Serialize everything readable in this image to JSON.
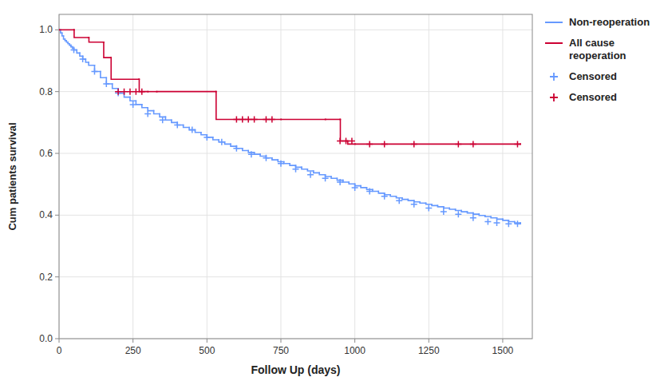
{
  "chart_data": {
    "type": "line",
    "xlabel": "Follow Up (days)",
    "ylabel": "Cum patients survival",
    "xlim": [
      0,
      1600
    ],
    "ylim": [
      0.0,
      1.05
    ],
    "xticks": [
      0,
      250,
      500,
      750,
      1000,
      1250,
      1500
    ],
    "yticks": [
      {
        "value": 0.0,
        "label": "0.0"
      },
      0.2,
      0.4,
      0.6,
      0.8,
      {
        "value": 1.0,
        "label": "1.0"
      }
    ],
    "grid": true,
    "legend": "right",
    "series": [
      {
        "name": "Non-reoperation",
        "type": "step",
        "color": "#6699ff",
        "line_style": "solid",
        "x": [
          0,
          5,
          10,
          15,
          20,
          25,
          30,
          35,
          40,
          45,
          50,
          60,
          70,
          80,
          90,
          100,
          120,
          140,
          160,
          180,
          200,
          220,
          240,
          260,
          280,
          300,
          320,
          340,
          360,
          380,
          400,
          420,
          440,
          460,
          480,
          500,
          520,
          540,
          560,
          580,
          600,
          620,
          640,
          660,
          680,
          700,
          720,
          740,
          760,
          780,
          800,
          820,
          840,
          860,
          880,
          900,
          920,
          940,
          960,
          980,
          1000,
          1020,
          1040,
          1060,
          1080,
          1100,
          1120,
          1140,
          1160,
          1180,
          1200,
          1220,
          1240,
          1260,
          1280,
          1300,
          1320,
          1340,
          1360,
          1380,
          1400,
          1420,
          1440,
          1460,
          1480,
          1500,
          1520,
          1540,
          1560
        ],
        "values": [
          1.0,
          0.99,
          0.98,
          0.97,
          0.965,
          0.96,
          0.955,
          0.95,
          0.945,
          0.94,
          0.935,
          0.925,
          0.915,
          0.905,
          0.895,
          0.885,
          0.865,
          0.845,
          0.825,
          0.81,
          0.795,
          0.782,
          0.77,
          0.758,
          0.748,
          0.738,
          0.728,
          0.718,
          0.708,
          0.7,
          0.692,
          0.684,
          0.676,
          0.668,
          0.66,
          0.652,
          0.644,
          0.637,
          0.63,
          0.623,
          0.616,
          0.609,
          0.603,
          0.597,
          0.591,
          0.585,
          0.579,
          0.573,
          0.567,
          0.561,
          0.555,
          0.549,
          0.543,
          0.537,
          0.531,
          0.525,
          0.519,
          0.513,
          0.507,
          0.501,
          0.495,
          0.489,
          0.483,
          0.477,
          0.471,
          0.466,
          0.461,
          0.456,
          0.451,
          0.447,
          0.443,
          0.439,
          0.435,
          0.431,
          0.427,
          0.423,
          0.419,
          0.415,
          0.411,
          0.407,
          0.403,
          0.399,
          0.395,
          0.391,
          0.387,
          0.383,
          0.379,
          0.375,
          0.372
        ]
      },
      {
        "name": "All cause\nreoperation",
        "type": "step",
        "color": "#cc0033",
        "line_style": "solid",
        "x": [
          0,
          1,
          50,
          51,
          100,
          101,
          150,
          151,
          175,
          176,
          270,
          271,
          300,
          301,
          330,
          331,
          530,
          531,
          750,
          751,
          900,
          901,
          950,
          951,
          975,
          976,
          1000,
          1001,
          1560
        ],
        "values": [
          1.0,
          1.0,
          1.0,
          0.975,
          0.975,
          0.96,
          0.96,
          0.91,
          0.91,
          0.84,
          0.84,
          0.8,
          0.8,
          0.8,
          0.8,
          0.8,
          0.8,
          0.71,
          0.71,
          0.71,
          0.71,
          0.71,
          0.71,
          0.64,
          0.64,
          0.63,
          0.63,
          0.63,
          0.63
        ]
      },
      {
        "name": "Censored",
        "type": "scatter",
        "color": "#6699ff",
        "marker": "plus",
        "x": [
          50,
          80,
          120,
          160,
          200,
          250,
          300,
          350,
          400,
          450,
          500,
          550,
          600,
          650,
          700,
          750,
          800,
          850,
          900,
          950,
          1000,
          1050,
          1100,
          1150,
          1200,
          1250,
          1300,
          1350,
          1400,
          1450,
          1480,
          1520,
          1550
        ],
        "values": [
          0.935,
          0.905,
          0.865,
          0.825,
          0.795,
          0.758,
          0.728,
          0.708,
          0.692,
          0.676,
          0.652,
          0.637,
          0.616,
          0.597,
          0.585,
          0.567,
          0.549,
          0.531,
          0.519,
          0.507,
          0.489,
          0.477,
          0.461,
          0.447,
          0.435,
          0.423,
          0.411,
          0.403,
          0.391,
          0.379,
          0.375,
          0.372,
          0.372
        ]
      },
      {
        "name": "Censored",
        "type": "scatter",
        "color": "#cc0033",
        "marker": "plus",
        "x": [
          200,
          220,
          240,
          260,
          280,
          600,
          620,
          640,
          660,
          700,
          720,
          950,
          970,
          990,
          1050,
          1100,
          1200,
          1350,
          1400,
          1550
        ],
        "values": [
          0.8,
          0.8,
          0.8,
          0.8,
          0.8,
          0.71,
          0.71,
          0.71,
          0.71,
          0.71,
          0.71,
          0.64,
          0.64,
          0.64,
          0.63,
          0.63,
          0.63,
          0.63,
          0.63,
          0.63
        ]
      }
    ]
  }
}
